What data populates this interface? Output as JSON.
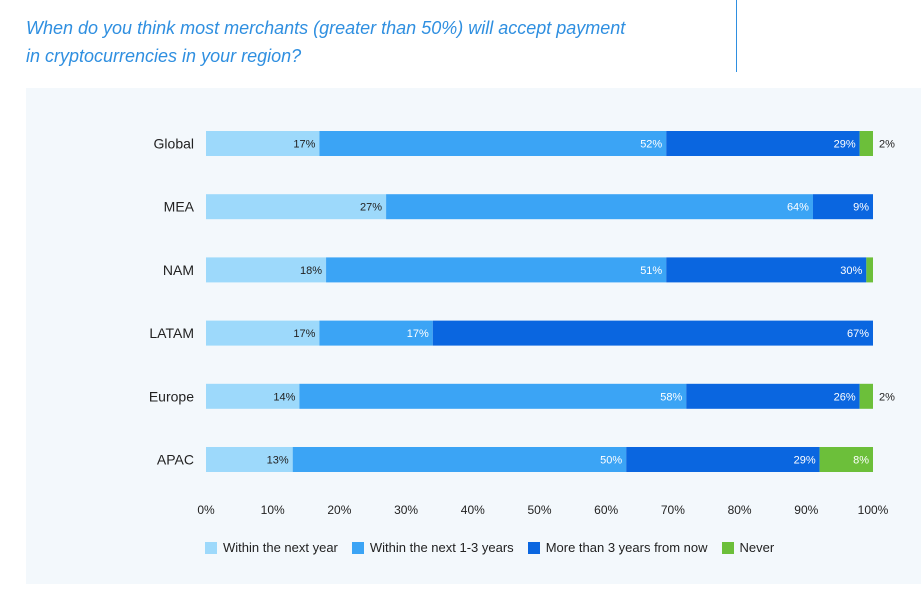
{
  "title": {
    "line1": "When do you think most merchants (greater than 50%) will accept payment",
    "line2": "in cryptocurrencies in your region?"
  },
  "colors": {
    "accent": "#2f8fe0",
    "series": [
      "#9dd9fb",
      "#3ba4f5",
      "#0a66e0",
      "#6cbf3a"
    ]
  },
  "chart_data": {
    "type": "bar",
    "orientation": "horizontal",
    "stacked": true,
    "title": "When do you think most merchants (greater than 50%) will accept payment in cryptocurrencies in your region?",
    "categories": [
      "Global",
      "MEA",
      "NAM",
      "LATAM",
      "Europe",
      "APAC"
    ],
    "series": [
      {
        "name": "Within the next year",
        "values": [
          17,
          27,
          18,
          17,
          14,
          13
        ],
        "labels": [
          "17%",
          "27%",
          "18%",
          "17%",
          "14%",
          "13%"
        ]
      },
      {
        "name": "Within the next 1-3 years",
        "values": [
          52,
          64,
          51,
          17,
          58,
          50
        ],
        "labels": [
          "52%",
          "64%",
          "51%",
          "17%",
          "58%",
          "50%"
        ]
      },
      {
        "name": "More than 3 years from now",
        "values": [
          29,
          9,
          30,
          67,
          26,
          29
        ],
        "labels": [
          "29%",
          "9%",
          "30%",
          "67%",
          "26%",
          "29%"
        ]
      },
      {
        "name": "Never",
        "values": [
          2,
          0,
          1,
          0,
          2,
          8
        ],
        "labels": [
          "2%",
          "",
          "",
          "",
          "2%",
          "8%"
        ]
      }
    ],
    "xlim": [
      0,
      100
    ],
    "xticks": [
      "0%",
      "10%",
      "20%",
      "30%",
      "40%",
      "50%",
      "60%",
      "70%",
      "80%",
      "90%",
      "100%"
    ],
    "legend_position": "bottom"
  }
}
